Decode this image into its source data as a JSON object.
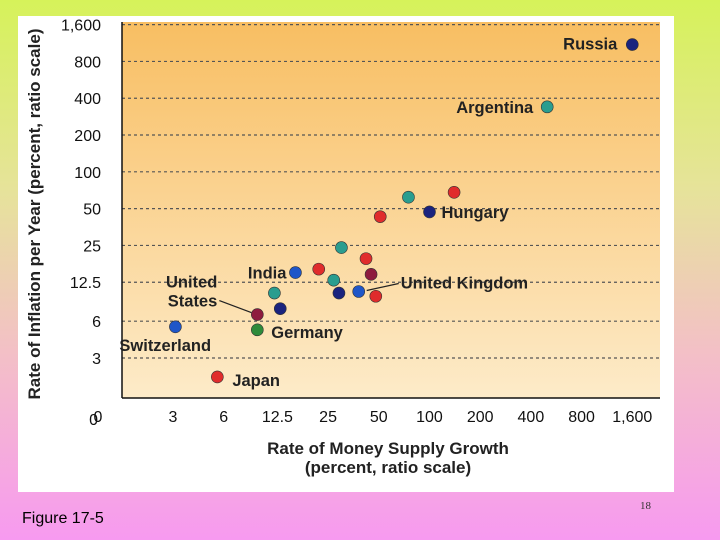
{
  "footer": {
    "figure_label": "Figure 17-5",
    "page_number": "18"
  },
  "chart_data": {
    "type": "scatter",
    "title": "",
    "xlabel": [
      "Rate of Money Supply Growth",
      "(percent, ratio scale)"
    ],
    "ylabel": "Rate of Inflation per Year (percent, ratio scale)",
    "x_scale": "log2",
    "y_scale": "log2",
    "x_ticks": [
      "0",
      "3",
      "6",
      "12.5",
      "25",
      "50",
      "100",
      "200",
      "400",
      "800",
      "1,600"
    ],
    "y_ticks": [
      "0",
      "3",
      "6",
      "12.5",
      "25",
      "50",
      "100",
      "200",
      "400",
      "800",
      "1,600"
    ],
    "grid": true,
    "colors": {
      "plot_bg_top": "#f8be62",
      "plot_bg_bottom": "#fdebc9",
      "grid": "#555555",
      "red": "#e02c2c",
      "navy": "#1a237e",
      "blue": "#1f56c8",
      "teal": "#2a9d8f",
      "green": "#2e8b3a",
      "maroon": "#8e1b3e"
    },
    "points": [
      {
        "name": "Russia",
        "x": 1600,
        "y": 1100,
        "color": "navy",
        "label": "Russia"
      },
      {
        "name": "Argentina",
        "x": 500,
        "y": 340,
        "color": "teal",
        "label": "Argentina"
      },
      {
        "name": "Hungary",
        "x": 100,
        "y": 47,
        "color": "navy",
        "label": "Hungary"
      },
      {
        "name": "United Kingdom",
        "x": 38,
        "y": 10.5,
        "color": "blue",
        "label": "United Kingdom"
      },
      {
        "name": "India",
        "x": 16,
        "y": 15,
        "color": "blue",
        "label": "India"
      },
      {
        "name": "United States",
        "x": 9.5,
        "y": 6.8,
        "color": "maroon",
        "label": [
          "United",
          "States"
        ]
      },
      {
        "name": "Germany",
        "x": 9.5,
        "y": 5.1,
        "color": "green",
        "label": "Germany"
      },
      {
        "name": "Switzerland",
        "x": 3.1,
        "y": 5.4,
        "color": "blue",
        "label": "Switzerland"
      },
      {
        "name": "Japan",
        "x": 5.5,
        "y": 2.1,
        "color": "red",
        "label": "Japan"
      },
      {
        "name": "unlabeled-1",
        "x": 140,
        "y": 68,
        "color": "red"
      },
      {
        "name": "unlabeled-2",
        "x": 75,
        "y": 62,
        "color": "teal"
      },
      {
        "name": "unlabeled-3",
        "x": 51,
        "y": 43,
        "color": "red"
      },
      {
        "name": "unlabeled-4",
        "x": 30,
        "y": 24,
        "color": "teal"
      },
      {
        "name": "unlabeled-5",
        "x": 42,
        "y": 19.5,
        "color": "red"
      },
      {
        "name": "unlabeled-6",
        "x": 22,
        "y": 16,
        "color": "red"
      },
      {
        "name": "unlabeled-7",
        "x": 45,
        "y": 14.5,
        "color": "maroon"
      },
      {
        "name": "unlabeled-8",
        "x": 27,
        "y": 13,
        "color": "teal"
      },
      {
        "name": "unlabeled-9",
        "x": 12,
        "y": 10.2,
        "color": "teal"
      },
      {
        "name": "unlabeled-10",
        "x": 29,
        "y": 10.2,
        "color": "navy"
      },
      {
        "name": "unlabeled-11",
        "x": 48,
        "y": 9.6,
        "color": "red"
      },
      {
        "name": "unlabeled-12",
        "x": 13,
        "y": 7.6,
        "color": "navy"
      }
    ]
  }
}
